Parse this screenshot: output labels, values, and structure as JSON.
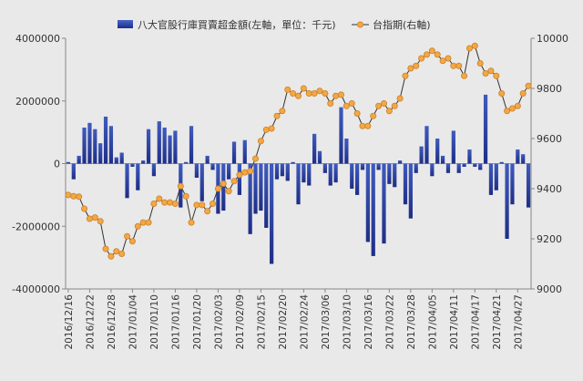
{
  "chart_data": {
    "type": "bar+line",
    "legend_position": "top",
    "grid": false,
    "colors": {
      "background": "#e9e9e9",
      "bar_top": "#3f5bbe",
      "bar_bottom": "#1e2e86",
      "line": "#333333",
      "marker_fill": "#f4a742",
      "marker_stroke": "#c9822b",
      "axis": "#888888",
      "text": "#333333"
    },
    "left_axis": {
      "ylim": [
        -4000000,
        4000000
      ],
      "ticks": [
        "4000000",
        "2000000",
        "0",
        "-2000000",
        "-4000000"
      ]
    },
    "right_axis": {
      "ylim": [
        9000,
        10000
      ],
      "ticks": [
        "10000",
        "9800",
        "9600",
        "9400",
        "9200",
        "9000"
      ]
    },
    "x_tick_labels": [
      "2016/12/16",
      "2016/12/22",
      "2016/12/28",
      "2017/01/04",
      "2017/01/10",
      "2017/01/16",
      "2017/01/20",
      "2017/02/03",
      "2017/02/09",
      "2017/02/15",
      "2017/02/20",
      "2017/02/24",
      "2017/03/06",
      "2017/03/10",
      "2017/03/16",
      "2017/03/22",
      "2017/03/28",
      "2017/04/05",
      "2017/04/11",
      "2017/04/17",
      "2017/04/21",
      "2017/04/27"
    ],
    "series": [
      {
        "name": "八大官股行庫買賣超金額(左軸，單位：千元)",
        "type": "bar",
        "axis": "left",
        "values": [
          50000,
          -500000,
          250000,
          1150000,
          1300000,
          1100000,
          650000,
          1500000,
          1200000,
          200000,
          350000,
          -1100000,
          -100000,
          -850000,
          100000,
          1100000,
          -400000,
          1350000,
          1150000,
          900000,
          1050000,
          -1400000,
          50000,
          1200000,
          -450000,
          -1200000,
          250000,
          -200000,
          -1600000,
          -1500000,
          -500000,
          700000,
          -1000000,
          750000,
          -2250000,
          -1600000,
          -1500000,
          -2050000,
          -3200000,
          -500000,
          -400000,
          -550000,
          50000,
          -1300000,
          -600000,
          -700000,
          950000,
          400000,
          -300000,
          -700000,
          -600000,
          1800000,
          800000,
          -800000,
          -1000000,
          -200000,
          -2500000,
          -2950000,
          -200000,
          -2550000,
          -650000,
          -750000,
          100000,
          -1300000,
          -1750000,
          -300000,
          550000,
          1200000,
          -400000,
          800000,
          250000,
          -300000,
          1050000,
          -300000,
          -100000,
          450000,
          -100000,
          -200000,
          2200000,
          -1000000,
          -850000,
          50000,
          -2400000,
          -1300000,
          450000,
          300000,
          -1400000
        ]
      },
      {
        "name": "台指期(右軸)",
        "type": "line",
        "axis": "right",
        "values": [
          9375,
          9370,
          9368,
          9320,
          9280,
          9285,
          9270,
          9160,
          9130,
          9150,
          9140,
          9210,
          9190,
          9250,
          9265,
          9265,
          9340,
          9360,
          9345,
          9345,
          9340,
          9410,
          9370,
          9265,
          9335,
          9335,
          9310,
          9340,
          9400,
          9420,
          9390,
          9430,
          9455,
          9465,
          9470,
          9520,
          9590,
          9635,
          9640,
          9690,
          9710,
          9795,
          9780,
          9770,
          9800,
          9780,
          9780,
          9790,
          9780,
          9740,
          9770,
          9775,
          9730,
          9740,
          9700,
          9650,
          9650,
          9690,
          9730,
          9740,
          9710,
          9730,
          9760,
          9850,
          9880,
          9890,
          9920,
          9935,
          9950,
          9935,
          9910,
          9920,
          9890,
          9890,
          9850,
          9960,
          9970,
          9900,
          9860,
          9870,
          9850,
          9780,
          9710,
          9720,
          9730,
          9780,
          9810
        ]
      }
    ]
  }
}
